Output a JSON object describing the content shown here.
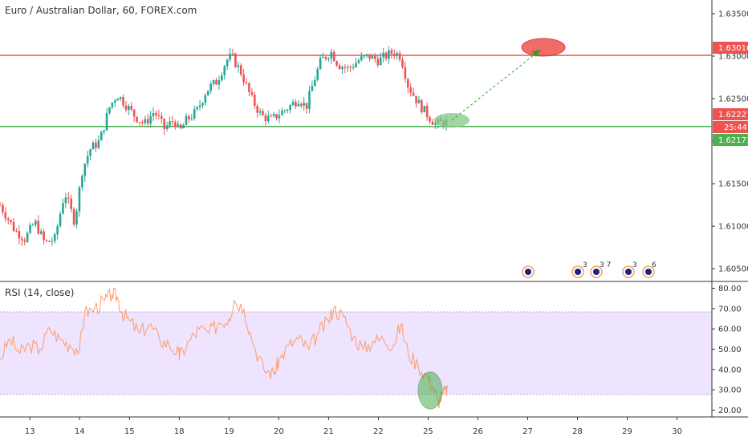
{
  "header": {
    "title": "Euro / Australian Dollar, 60, FOREX.com"
  },
  "rsi_panel": {
    "title": "RSI (14, close)"
  },
  "colors": {
    "resistance": "#ef5350",
    "support": "#4caf50",
    "bull": "#26a69a",
    "bear": "#ef5350",
    "rsi_line": "#ff9c66",
    "rsi_band": "#ece1ff",
    "arrow": "#27a327",
    "axis_text": "#333333"
  },
  "tags": {
    "resistance_price": "1.63010",
    "current_price": "1.62227",
    "countdown": "25:44",
    "support_price": "1.62173"
  },
  "events": [
    "3",
    "3 7",
    "3",
    "6"
  ],
  "chart_data": [
    {
      "type": "candlestick",
      "title": "Euro / Australian Dollar, 60, FOREX.com",
      "x_ticks": [
        "13",
        "14",
        "15",
        "18",
        "19",
        "20",
        "21",
        "22",
        "25",
        "26",
        "27",
        "28",
        "29",
        "30"
      ],
      "y_ticks": [
        "1.60500",
        "1.61000",
        "1.61500",
        "1.62000",
        "1.62500",
        "1.63000",
        "1.63500"
      ],
      "ylim": [
        1.6036,
        1.6366
      ],
      "xlim": [
        12.4,
        30.7
      ],
      "lines": [
        {
          "name": "resistance",
          "y": 1.6301
        },
        {
          "name": "support",
          "y": 1.62173
        }
      ],
      "path": [
        [
          12.4,
          1.6125
        ],
        [
          12.7,
          1.6095
        ],
        [
          12.9,
          1.6085
        ],
        [
          13.1,
          1.6105
        ],
        [
          13.3,
          1.608
        ],
        [
          13.5,
          1.6085
        ],
        [
          13.7,
          1.614
        ],
        [
          13.9,
          1.6105
        ],
        [
          14.05,
          1.6165
        ],
        [
          14.2,
          1.619
        ],
        [
          14.4,
          1.62
        ],
        [
          14.6,
          1.624
        ],
        [
          14.75,
          1.6255
        ],
        [
          14.9,
          1.6245
        ],
        [
          15.1,
          1.623
        ],
        [
          15.3,
          1.622
        ],
        [
          15.5,
          1.6235
        ],
        [
          15.7,
          1.6215
        ],
        [
          15.9,
          1.6225
        ],
        [
          18.0,
          1.621
        ],
        [
          18.15,
          1.6225
        ],
        [
          18.35,
          1.6235
        ],
        [
          18.55,
          1.626
        ],
        [
          18.75,
          1.627
        ],
        [
          18.95,
          1.6295
        ],
        [
          19.05,
          1.63
        ],
        [
          19.25,
          1.628
        ],
        [
          19.45,
          1.625
        ],
        [
          19.65,
          1.623
        ],
        [
          19.85,
          1.6225
        ],
        [
          20.0,
          1.6232
        ],
        [
          20.2,
          1.624
        ],
        [
          20.4,
          1.625
        ],
        [
          20.55,
          1.624
        ],
        [
          20.7,
          1.627
        ],
        [
          20.85,
          1.6295
        ],
        [
          20.95,
          1.63
        ],
        [
          21.05,
          1.6305
        ],
        [
          21.2,
          1.629
        ],
        [
          21.4,
          1.6285
        ],
        [
          21.6,
          1.6295
        ],
        [
          21.8,
          1.63
        ],
        [
          22.0,
          1.6295
        ],
        [
          22.15,
          1.63
        ],
        [
          22.3,
          1.6305
        ],
        [
          22.45,
          1.63
        ],
        [
          22.6,
          1.6265
        ],
        [
          22.8,
          1.6245
        ],
        [
          23.0,
          1.623
        ],
        [
          23.15,
          1.622
        ],
        [
          23.3,
          1.6222
        ],
        [
          23.4,
          1.6223
        ]
      ]
    },
    {
      "type": "line",
      "title": "RSI (14, close)",
      "y_ticks": [
        "20.00",
        "30.00",
        "40.00",
        "50.00",
        "60.00",
        "70.00",
        "80.00"
      ],
      "ylim": [
        17,
        83
      ],
      "band": [
        30,
        70
      ],
      "series": [
        {
          "x": [
            12.4,
            12.6,
            12.8,
            13.0,
            13.2,
            13.4,
            13.6,
            13.8,
            14.0,
            14.1,
            14.3,
            14.5,
            14.65,
            14.75,
            14.85,
            15.0,
            15.2,
            15.4,
            15.6,
            15.8,
            16.0,
            18.0,
            18.2,
            18.4,
            18.6,
            18.8,
            19.0,
            19.1,
            19.3,
            19.5,
            19.7,
            19.9,
            20.0,
            20.2,
            20.4,
            20.6,
            20.8,
            21.0,
            21.1,
            21.3,
            21.5,
            21.7,
            21.9,
            22.1,
            22.3,
            22.45,
            22.6,
            22.8,
            23.0,
            23.1,
            23.2,
            23.3,
            23.4
          ],
          "y": [
            45,
            55,
            48,
            52,
            50,
            60,
            55,
            52,
            50,
            68,
            70,
            74,
            77,
            76,
            68,
            64,
            58,
            62,
            55,
            52,
            48,
            46,
            54,
            60,
            58,
            63,
            65,
            74,
            70,
            52,
            40,
            38,
            44,
            52,
            55,
            50,
            58,
            64,
            70,
            66,
            56,
            50,
            54,
            55,
            52,
            62,
            48,
            42,
            36,
            31,
            24,
            28,
            31
          ]
        }
      ]
    }
  ]
}
